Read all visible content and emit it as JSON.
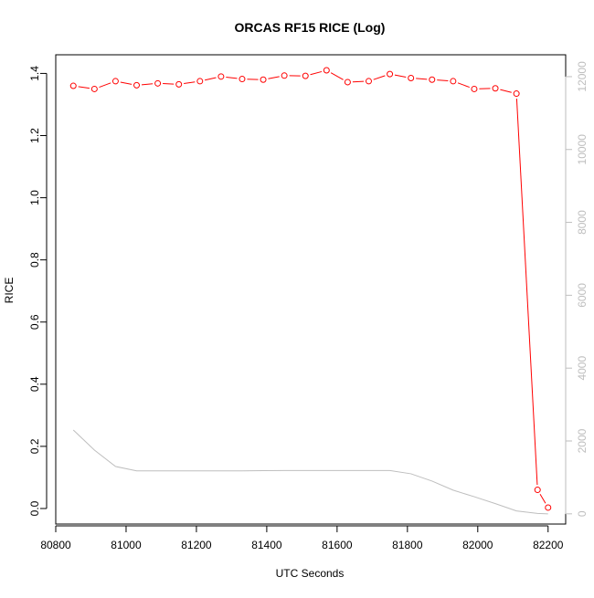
{
  "chart_data": {
    "type": "line",
    "title": "ORCAS RF15 RICE (Log)",
    "xlabel": "UTC Seconds",
    "ylabel": "RICE",
    "y2label": "",
    "xlim": [
      80800,
      82250
    ],
    "ylim": [
      -0.05,
      1.46
    ],
    "y2lim": [
      -280,
      12600
    ],
    "xticks": [
      80800,
      81000,
      81200,
      81400,
      81600,
      81800,
      82000,
      82200
    ],
    "yticks": [
      0.0,
      0.2,
      0.4,
      0.6,
      0.8,
      1.0,
      1.2,
      1.4
    ],
    "y2ticks": [
      0,
      2000,
      4000,
      6000,
      8000,
      10000,
      12000
    ],
    "grid": false,
    "colors": {
      "rice": "#ff0000",
      "secondary": "#bebebe",
      "axis": "#000000"
    },
    "series": [
      {
        "axis": "left",
        "style": "line-with-points",
        "x": [
          80850,
          80910,
          80970,
          81030,
          81090,
          81150,
          81210,
          81270,
          81330,
          81390,
          81450,
          81510,
          81570,
          81630,
          81690,
          81750,
          81810,
          81870,
          81930,
          81990,
          82050,
          82110,
          82170,
          82200
        ],
        "values": [
          1.36,
          1.35,
          1.375,
          1.362,
          1.368,
          1.365,
          1.375,
          1.39,
          1.382,
          1.38,
          1.393,
          1.392,
          1.41,
          1.372,
          1.375,
          1.398,
          1.385,
          1.38,
          1.375,
          1.35,
          1.352,
          1.335,
          0.06,
          0.003
        ]
      },
      {
        "axis": "right",
        "style": "line",
        "x": [
          80850,
          80910,
          80970,
          81030,
          81090,
          81150,
          81210,
          81270,
          81330,
          81390,
          81450,
          81510,
          81570,
          81630,
          81690,
          81750,
          81810,
          81870,
          81930,
          81990,
          82050,
          82110,
          82170,
          82200
        ],
        "values": [
          2300,
          1750,
          1300,
          1180,
          1180,
          1180,
          1180,
          1180,
          1180,
          1185,
          1190,
          1190,
          1190,
          1190,
          1190,
          1190,
          1100,
          900,
          650,
          470,
          280,
          80,
          10,
          0
        ]
      }
    ]
  }
}
